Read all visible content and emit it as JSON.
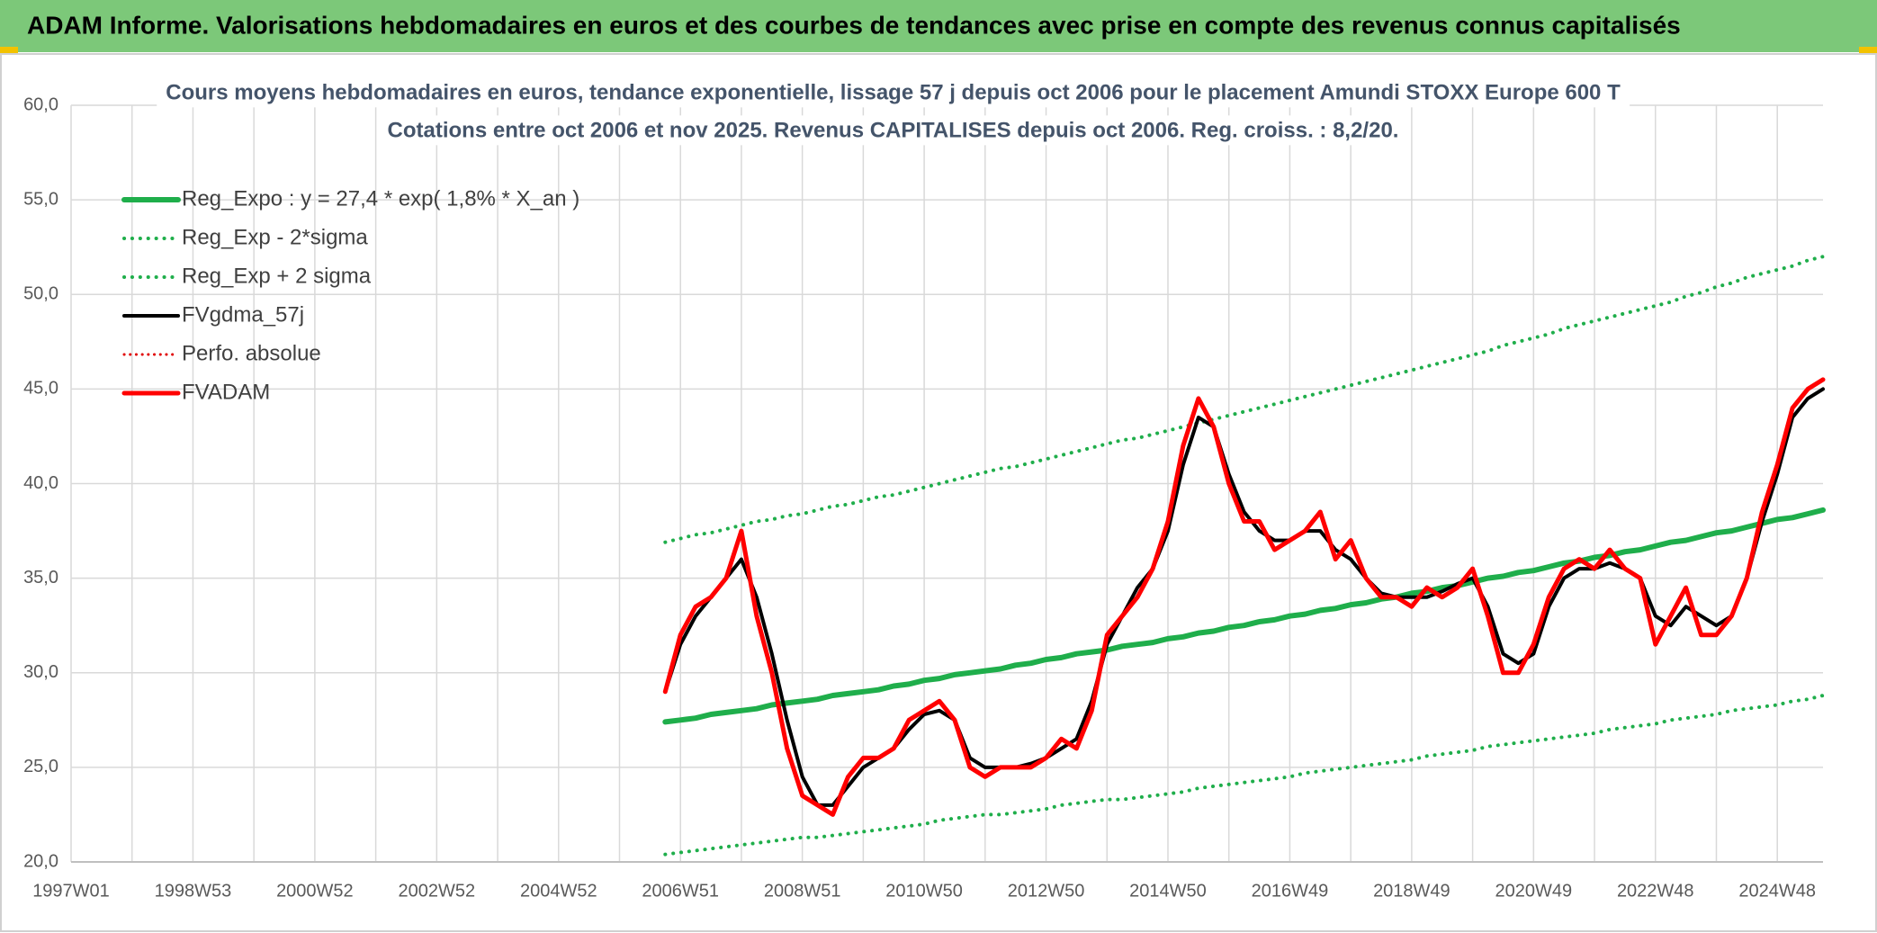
{
  "header": {
    "title": "ADAM Informe. Valorisations hebdomadaires en euros et des courbes de tendances avec prise en compte des revenus connus capitalisés"
  },
  "chart_data": {
    "type": "line",
    "title": "Cours moyens hebdomadaires en euros, tendance exponentielle, lissage 57 j depuis oct 2006 pour le placement Amundi STOXX Europe 600 T",
    "subtitle": "Cotations entre oct 2006 et nov 2025. Revenus CAPITALISES depuis oct 2006. Reg. croiss. : 8,2/20.",
    "categories": [
      "1997W01",
      null,
      null,
      null,
      null,
      null,
      null,
      null,
      "1998W53",
      null,
      null,
      null,
      null,
      null,
      null,
      null,
      "2000W52",
      null,
      null,
      null,
      null,
      null,
      null,
      null,
      "2002W52",
      null,
      null,
      null,
      null,
      null,
      null,
      null,
      "2004W52",
      null,
      null,
      null,
      null,
      null,
      null,
      null,
      "2006W51",
      null,
      null,
      null,
      null,
      null,
      null,
      null,
      "2008W51",
      null,
      null,
      null,
      null,
      null,
      null,
      null,
      "2010W50",
      null,
      null,
      null,
      null,
      null,
      null,
      null,
      "2012W50",
      null,
      null,
      null,
      null,
      null,
      null,
      null,
      "2014W50",
      null,
      null,
      null,
      null,
      null,
      null,
      null,
      "2016W49",
      null,
      null,
      null,
      null,
      null,
      null,
      null,
      "2018W49",
      null,
      null,
      null,
      null,
      null,
      null,
      null,
      "2020W49",
      null,
      null,
      null,
      null,
      null,
      null,
      null,
      "2022W48",
      null,
      null,
      null,
      null,
      null,
      null,
      null,
      "2024W48",
      null,
      null,
      null
    ],
    "ylim": [
      20,
      60
    ],
    "yticks": [
      {
        "value": 20,
        "label": "20,0"
      },
      {
        "value": 25,
        "label": "25,0"
      },
      {
        "value": 30,
        "label": "30,0"
      },
      {
        "value": 35,
        "label": "35,0"
      },
      {
        "value": 40,
        "label": "40,0"
      },
      {
        "value": 45,
        "label": "45,0"
      },
      {
        "value": 50,
        "label": "50,0"
      },
      {
        "value": 55,
        "label": "55,0"
      },
      {
        "value": 60,
        "label": "60,0"
      }
    ],
    "grid": true,
    "legend": "upper left",
    "series": [
      {
        "name": "Reg_Expo : y = 27,4 * exp( 1,8% *  X_an )",
        "color": "#1fae4b",
        "style": "solid",
        "width": 6,
        "values": [
          null,
          null,
          null,
          null,
          null,
          null,
          null,
          null,
          null,
          null,
          null,
          null,
          null,
          null,
          null,
          null,
          null,
          null,
          null,
          null,
          null,
          null,
          null,
          null,
          null,
          null,
          null,
          null,
          null,
          null,
          null,
          null,
          null,
          null,
          null,
          null,
          null,
          null,
          null,
          27.4,
          27.5,
          27.6,
          27.8,
          27.9,
          28.0,
          28.1,
          28.3,
          28.4,
          28.5,
          28.6,
          28.8,
          28.9,
          29.0,
          29.1,
          29.3,
          29.4,
          29.6,
          29.7,
          29.9,
          30.0,
          30.1,
          30.2,
          30.4,
          30.5,
          30.7,
          30.8,
          31.0,
          31.1,
          31.2,
          31.4,
          31.5,
          31.6,
          31.8,
          31.9,
          32.1,
          32.2,
          32.4,
          32.5,
          32.7,
          32.8,
          33.0,
          33.1,
          33.3,
          33.4,
          33.6,
          33.7,
          33.9,
          34.0,
          34.2,
          34.3,
          34.5,
          34.6,
          34.8,
          35.0,
          35.1,
          35.3,
          35.4,
          35.6,
          35.8,
          35.9,
          36.1,
          36.2,
          36.4,
          36.5,
          36.7,
          36.9,
          37.0,
          37.2,
          37.4,
          37.5,
          37.7,
          37.9,
          38.1,
          38.2,
          38.4,
          38.6
        ]
      },
      {
        "name": "Reg_Exp - 2*sigma",
        "color": "#1fae4b",
        "style": "dotted",
        "width": 4,
        "values": [
          null,
          null,
          null,
          null,
          null,
          null,
          null,
          null,
          null,
          null,
          null,
          null,
          null,
          null,
          null,
          null,
          null,
          null,
          null,
          null,
          null,
          null,
          null,
          null,
          null,
          null,
          null,
          null,
          null,
          null,
          null,
          null,
          null,
          null,
          null,
          null,
          null,
          null,
          null,
          20.4,
          20.5,
          20.6,
          20.7,
          20.8,
          20.9,
          21.0,
          21.1,
          21.2,
          21.3,
          21.3,
          21.4,
          21.5,
          21.6,
          21.7,
          21.8,
          21.9,
          22.0,
          22.2,
          22.3,
          22.4,
          22.5,
          22.5,
          22.6,
          22.7,
          22.8,
          23.0,
          23.1,
          23.2,
          23.3,
          23.3,
          23.4,
          23.5,
          23.6,
          23.7,
          23.9,
          24.0,
          24.1,
          24.2,
          24.3,
          24.4,
          24.5,
          24.7,
          24.8,
          24.9,
          25.0,
          25.1,
          25.2,
          25.3,
          25.4,
          25.6,
          25.7,
          25.8,
          25.9,
          26.1,
          26.2,
          26.3,
          26.4,
          26.5,
          26.6,
          26.7,
          26.8,
          27.0,
          27.1,
          27.2,
          27.3,
          27.5,
          27.6,
          27.7,
          27.8,
          28.0,
          28.1,
          28.2,
          28.3,
          28.5,
          28.6,
          28.8
        ]
      },
      {
        "name": "Reg_Exp + 2 sigma",
        "color": "#1fae4b",
        "style": "dotted",
        "width": 4,
        "values": [
          null,
          null,
          null,
          null,
          null,
          null,
          null,
          null,
          null,
          null,
          null,
          null,
          null,
          null,
          null,
          null,
          null,
          null,
          null,
          null,
          null,
          null,
          null,
          null,
          null,
          null,
          null,
          null,
          null,
          null,
          null,
          null,
          null,
          null,
          null,
          null,
          null,
          null,
          null,
          36.9,
          37.1,
          37.3,
          37.4,
          37.6,
          37.8,
          38.0,
          38.1,
          38.3,
          38.4,
          38.6,
          38.8,
          38.9,
          39.1,
          39.3,
          39.4,
          39.6,
          39.8,
          40.0,
          40.2,
          40.4,
          40.6,
          40.8,
          40.9,
          41.1,
          41.3,
          41.5,
          41.7,
          41.9,
          42.1,
          42.3,
          42.4,
          42.6,
          42.8,
          43.0,
          43.2,
          43.4,
          43.6,
          43.8,
          44.0,
          44.2,
          44.4,
          44.6,
          44.8,
          45.0,
          45.2,
          45.4,
          45.6,
          45.8,
          46.0,
          46.2,
          46.4,
          46.6,
          46.8,
          47.0,
          47.3,
          47.5,
          47.7,
          47.9,
          48.2,
          48.4,
          48.6,
          48.8,
          49.0,
          49.2,
          49.4,
          49.6,
          49.9,
          50.1,
          50.4,
          50.6,
          50.9,
          51.1,
          51.3,
          51.5,
          51.8,
          52.0
        ]
      },
      {
        "name": "FVgdma_57j",
        "color": "#000000",
        "style": "solid",
        "width": 4,
        "values": [
          null,
          null,
          null,
          null,
          null,
          null,
          null,
          null,
          null,
          null,
          null,
          null,
          null,
          null,
          null,
          null,
          null,
          null,
          null,
          null,
          null,
          null,
          null,
          null,
          null,
          null,
          null,
          null,
          null,
          null,
          null,
          null,
          null,
          null,
          null,
          null,
          null,
          null,
          null,
          29,
          31.5,
          33,
          34,
          35,
          36,
          34,
          31,
          27.5,
          24.5,
          23,
          23,
          24,
          25,
          25.5,
          26,
          27,
          27.8,
          28,
          27.5,
          25.5,
          25,
          25,
          25,
          25.2,
          25.5,
          26,
          26.5,
          28.5,
          31.5,
          33,
          34.5,
          35.5,
          37.5,
          41,
          43.5,
          43,
          40.5,
          38.5,
          37.5,
          37,
          37,
          37.5,
          37.5,
          36.5,
          36,
          35,
          34.2,
          34,
          34,
          34,
          34.3,
          34.7,
          35,
          33.5,
          31,
          30.5,
          31,
          33.5,
          35,
          35.5,
          35.5,
          35.8,
          35.5,
          35,
          33,
          32.5,
          33.5,
          33,
          32.5,
          33,
          35,
          38,
          40.5,
          43.5,
          44.5,
          45
        ]
      },
      {
        "name": "Perfo. absolue",
        "color": "#e00000",
        "style": "dotted",
        "width": 3,
        "values": [
          null,
          null,
          null,
          null,
          null,
          null,
          null,
          null,
          null,
          null,
          null,
          null,
          null,
          null,
          null,
          null,
          null,
          null,
          null,
          null,
          null,
          null,
          null,
          null,
          null,
          null,
          null,
          null,
          null,
          null,
          null,
          null,
          null,
          null,
          null,
          null,
          null,
          null,
          null,
          29,
          32,
          33.5,
          34,
          35,
          37.5,
          33,
          30,
          26,
          23.5,
          23,
          22.5,
          24.5,
          25.5,
          25.5,
          26,
          27.5,
          28,
          28.5,
          27.5,
          25,
          24.5,
          25,
          25,
          25,
          25.5,
          26.5,
          26,
          28,
          32,
          33,
          34,
          35.5,
          38,
          42,
          44.5,
          43,
          40,
          38,
          38,
          36.5,
          37,
          37.5,
          38.5,
          36,
          37,
          35,
          34,
          34,
          33.5,
          34.5,
          34,
          34.5,
          35.5,
          33,
          30,
          30,
          31.5,
          34,
          35.5,
          36,
          35.5,
          36.5,
          35.5,
          35,
          31.5,
          33,
          34.5,
          32,
          32,
          33,
          35,
          38.5,
          41,
          44,
          45,
          45.5
        ]
      },
      {
        "name": "FVADAM",
        "color": "#ff0000",
        "style": "solid",
        "width": 5,
        "values": [
          null,
          null,
          null,
          null,
          null,
          null,
          null,
          null,
          null,
          null,
          null,
          null,
          null,
          null,
          null,
          null,
          null,
          null,
          null,
          null,
          null,
          null,
          null,
          null,
          null,
          null,
          null,
          null,
          null,
          null,
          null,
          null,
          null,
          null,
          null,
          null,
          null,
          null,
          null,
          29,
          32,
          33.5,
          34,
          35,
          37.5,
          33,
          30,
          26,
          23.5,
          23,
          22.5,
          24.5,
          25.5,
          25.5,
          26,
          27.5,
          28,
          28.5,
          27.5,
          25,
          24.5,
          25,
          25,
          25,
          25.5,
          26.5,
          26,
          28,
          32,
          33,
          34,
          35.5,
          38,
          42,
          44.5,
          43,
          40,
          38,
          38,
          36.5,
          37,
          37.5,
          38.5,
          36,
          37,
          35,
          34,
          34,
          33.5,
          34.5,
          34,
          34.5,
          35.5,
          33,
          30,
          30,
          31.5,
          34,
          35.5,
          36,
          35.5,
          36.5,
          35.5,
          35,
          31.5,
          33,
          34.5,
          32,
          32,
          33,
          35,
          38.5,
          41,
          44,
          45,
          45.5
        ]
      }
    ]
  }
}
